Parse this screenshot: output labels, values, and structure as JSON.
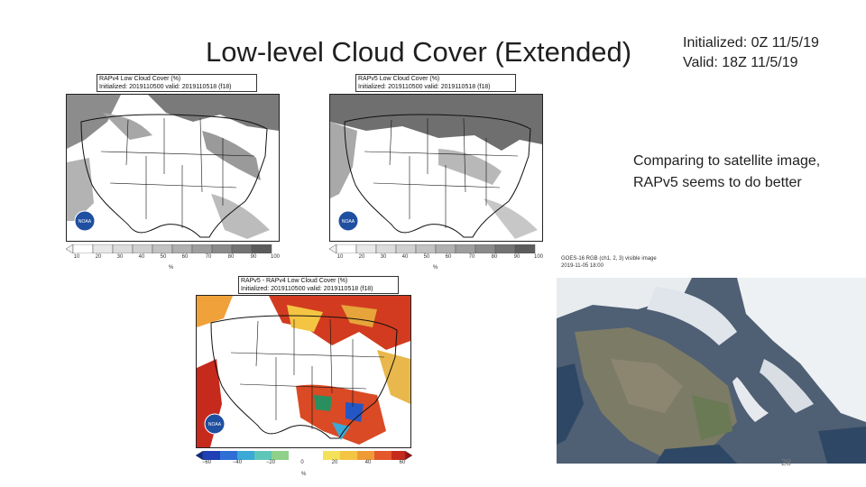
{
  "slide": {
    "title": "Low-level Cloud Cover (Extended)",
    "initialized": "Initialized: 0Z 11/5/19",
    "valid": "Valid: 18Z 11/5/19",
    "note": "Comparing to satellite image, RAPv5 seems to do better",
    "page_number": "28"
  },
  "panels": {
    "rapv4": {
      "title": "RAPv4 Low Cloud Cover (%)",
      "subtitle": "Initialized: 2019110500 valid: 2019110518 (f18)",
      "colorbar_ticks": [
        "10",
        "20",
        "30",
        "40",
        "50",
        "60",
        "70",
        "80",
        "90",
        "100"
      ],
      "unit": "%"
    },
    "rapv5": {
      "title": "RAPv5 Low Cloud Cover (%)",
      "subtitle": "Initialized: 2019110500 valid: 2019110518 (f18)",
      "colorbar_ticks": [
        "10",
        "20",
        "30",
        "40",
        "50",
        "60",
        "70",
        "80",
        "90",
        "100"
      ],
      "unit": "%"
    },
    "diff": {
      "title": "RAPv5 - RAPv4 Low Cloud Cover (%)",
      "subtitle": "Initialized: 2019110500 valid: 2019110518 (f18)",
      "colorbar_ticks": [
        "−60",
        "−40",
        "−20",
        "0",
        "20",
        "40",
        "60"
      ],
      "unit": "%"
    },
    "satellite": {
      "title": "GOES-16 RGB (ch1, 2, 3) visible image",
      "timestamp": "2019-11-05 18:00"
    }
  },
  "colors": {
    "cloud_gray": "#8a8a8a",
    "diff_positive": "#c62a1d",
    "diff_negative": "#2457c5",
    "satellite_land": "#4f5f74"
  }
}
